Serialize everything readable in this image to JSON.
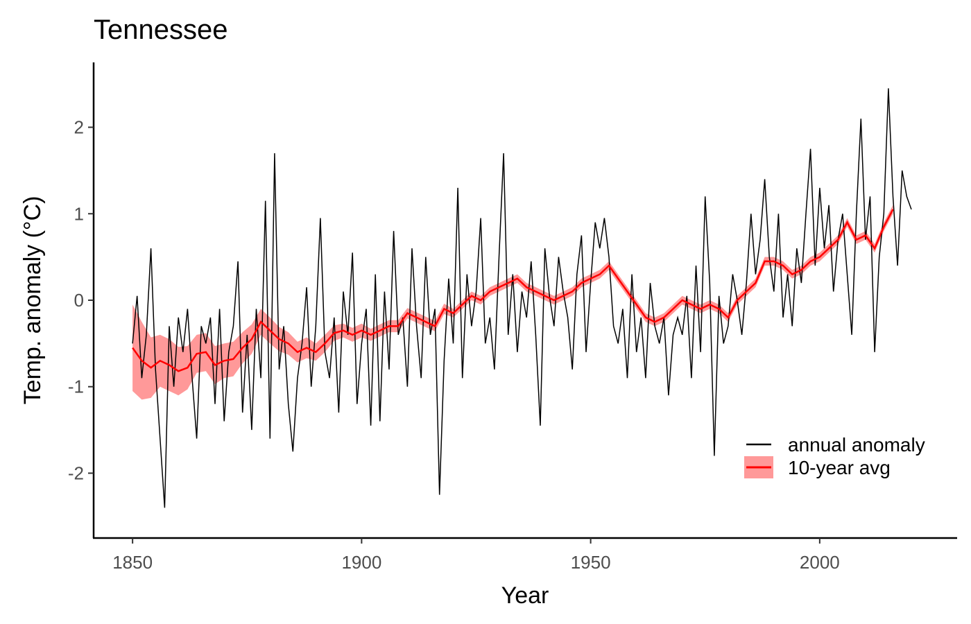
{
  "chart_data": {
    "type": "line",
    "title": "Tennessee",
    "xlabel": "Year",
    "ylabel": "Temp. anomaly (°C)",
    "xlim": [
      1841.5,
      2030
    ],
    "ylim": [
      -2.75,
      2.75
    ],
    "xticks": [
      1850,
      1900,
      1950,
      2000
    ],
    "yticks": [
      -2,
      -1,
      0,
      1,
      2
    ],
    "grid": false,
    "legend_position": "bottom-right",
    "series": [
      {
        "name": "annual anomaly",
        "color": "#000000",
        "x": [
          1850,
          1851,
          1852,
          1853,
          1854,
          1855,
          1856,
          1857,
          1858,
          1859,
          1860,
          1861,
          1862,
          1863,
          1864,
          1865,
          1866,
          1867,
          1868,
          1869,
          1870,
          1871,
          1872,
          1873,
          1874,
          1875,
          1876,
          1877,
          1878,
          1879,
          1880,
          1881,
          1882,
          1883,
          1884,
          1885,
          1886,
          1887,
          1888,
          1889,
          1890,
          1891,
          1892,
          1893,
          1894,
          1895,
          1896,
          1897,
          1898,
          1899,
          1900,
          1901,
          1902,
          1903,
          1904,
          1905,
          1906,
          1907,
          1908,
          1909,
          1910,
          1911,
          1912,
          1913,
          1914,
          1915,
          1916,
          1917,
          1918,
          1919,
          1920,
          1921,
          1922,
          1923,
          1924,
          1925,
          1926,
          1927,
          1928,
          1929,
          1930,
          1931,
          1932,
          1933,
          1934,
          1935,
          1936,
          1937,
          1938,
          1939,
          1940,
          1941,
          1942,
          1943,
          1944,
          1945,
          1946,
          1947,
          1948,
          1949,
          1950,
          1951,
          1952,
          1953,
          1954,
          1955,
          1956,
          1957,
          1958,
          1959,
          1960,
          1961,
          1962,
          1963,
          1964,
          1965,
          1966,
          1967,
          1968,
          1969,
          1970,
          1971,
          1972,
          1973,
          1974,
          1975,
          1976,
          1977,
          1978,
          1979,
          1980,
          1981,
          1982,
          1983,
          1984,
          1985,
          1986,
          1987,
          1988,
          1989,
          1990,
          1991,
          1992,
          1993,
          1994,
          1995,
          1996,
          1997,
          1998,
          1999,
          2000,
          2001,
          2002,
          2003,
          2004,
          2005,
          2006,
          2007,
          2008,
          2009,
          2010,
          2011,
          2012,
          2013,
          2014,
          2015,
          2016,
          2017,
          2018,
          2019,
          2020
        ],
        "values": [
          -0.5,
          0.05,
          -0.9,
          -0.4,
          0.6,
          -0.8,
          -1.6,
          -2.4,
          -0.3,
          -1.0,
          -0.2,
          -0.6,
          -0.1,
          -0.9,
          -1.6,
          -0.3,
          -0.5,
          -0.2,
          -1.2,
          -0.1,
          -1.4,
          -0.6,
          -0.3,
          0.45,
          -1.3,
          -0.4,
          -1.5,
          -0.1,
          -0.9,
          1.15,
          -1.6,
          1.7,
          -0.8,
          -0.3,
          -1.2,
          -1.75,
          -0.9,
          -0.5,
          0.15,
          -1.0,
          -0.3,
          0.95,
          -0.6,
          -0.9,
          -0.2,
          -1.3,
          0.1,
          -0.4,
          0.55,
          -1.2,
          -0.5,
          -0.1,
          -1.45,
          0.3,
          -1.4,
          0.1,
          -0.8,
          0.8,
          -0.4,
          -0.2,
          -1.0,
          0.6,
          -0.3,
          -0.9,
          0.5,
          -0.4,
          -0.1,
          -2.25,
          -0.7,
          0.25,
          -0.5,
          1.3,
          -0.9,
          0.3,
          -0.3,
          0.1,
          0.95,
          -0.5,
          -0.2,
          -0.8,
          0.5,
          1.7,
          -0.4,
          0.3,
          -0.6,
          0.1,
          -0.2,
          0.45,
          -0.4,
          -1.45,
          0.6,
          0.05,
          -0.3,
          0.5,
          0.1,
          -0.2,
          -0.8,
          0.3,
          0.75,
          -0.6,
          0.2,
          0.9,
          0.6,
          0.95,
          0.5,
          -0.3,
          -0.5,
          -0.1,
          -0.9,
          0.3,
          -0.6,
          -0.2,
          -0.9,
          0.2,
          -0.3,
          -0.5,
          -0.2,
          -1.1,
          -0.4,
          -0.2,
          -0.4,
          0.05,
          -0.9,
          0.4,
          -0.6,
          1.2,
          0.2,
          -1.8,
          0.05,
          -0.5,
          -0.3,
          0.3,
          0.0,
          -0.4,
          0.2,
          1.0,
          0.3,
          0.7,
          1.4,
          0.5,
          0.1,
          1.0,
          -0.2,
          0.3,
          -0.3,
          0.6,
          0.2,
          1.0,
          1.75,
          0.4,
          1.3,
          0.6,
          1.1,
          0.1,
          0.7,
          1.0,
          0.3,
          -0.4,
          1.0,
          2.1,
          0.7,
          1.2,
          -0.6,
          0.5,
          1.0,
          2.45,
          1.2,
          0.4,
          1.5,
          1.2,
          1.05
        ]
      },
      {
        "name": "10-year avg",
        "color": "#ff0000",
        "band_color": "#ff8080",
        "x": [
          1850,
          1852,
          1854,
          1856,
          1858,
          1860,
          1862,
          1864,
          1866,
          1868,
          1870,
          1872,
          1874,
          1876,
          1878,
          1880,
          1882,
          1884,
          1886,
          1888,
          1890,
          1892,
          1894,
          1896,
          1898,
          1900,
          1902,
          1904,
          1906,
          1908,
          1910,
          1912,
          1914,
          1916,
          1918,
          1920,
          1922,
          1924,
          1926,
          1928,
          1930,
          1932,
          1934,
          1936,
          1938,
          1940,
          1942,
          1944,
          1946,
          1948,
          1950,
          1952,
          1954,
          1956,
          1958,
          1960,
          1962,
          1964,
          1966,
          1968,
          1970,
          1972,
          1974,
          1976,
          1978,
          1980,
          1982,
          1984,
          1986,
          1988,
          1990,
          1992,
          1994,
          1996,
          1998,
          2000,
          2002,
          2004,
          2006,
          2008,
          2010,
          2012,
          2014,
          2016
        ],
        "values": [
          -0.55,
          -0.7,
          -0.78,
          -0.7,
          -0.75,
          -0.82,
          -0.78,
          -0.62,
          -0.6,
          -0.75,
          -0.7,
          -0.68,
          -0.55,
          -0.45,
          -0.25,
          -0.35,
          -0.45,
          -0.5,
          -0.6,
          -0.55,
          -0.6,
          -0.5,
          -0.38,
          -0.35,
          -0.4,
          -0.35,
          -0.4,
          -0.35,
          -0.3,
          -0.3,
          -0.15,
          -0.2,
          -0.25,
          -0.3,
          -0.1,
          -0.15,
          -0.05,
          0.05,
          0.0,
          0.1,
          0.15,
          0.2,
          0.25,
          0.15,
          0.1,
          0.05,
          0.0,
          0.05,
          0.1,
          0.2,
          0.25,
          0.3,
          0.4,
          0.25,
          0.1,
          -0.05,
          -0.2,
          -0.25,
          -0.2,
          -0.1,
          0.0,
          -0.05,
          -0.1,
          -0.05,
          -0.1,
          -0.2,
          0.0,
          0.1,
          0.2,
          0.45,
          0.45,
          0.4,
          0.3,
          0.35,
          0.45,
          0.5,
          0.6,
          0.7,
          0.9,
          0.7,
          0.75,
          0.6,
          0.85,
          1.05
        ],
        "band_half_width": [
          0.5,
          0.45,
          0.35,
          0.3,
          0.3,
          0.28,
          0.25,
          0.22,
          0.22,
          0.22,
          0.2,
          0.2,
          0.18,
          0.17,
          0.15,
          0.15,
          0.14,
          0.13,
          0.12,
          0.12,
          0.1,
          0.1,
          0.09,
          0.08,
          0.08,
          0.08,
          0.07,
          0.07,
          0.07,
          0.07,
          0.06,
          0.06,
          0.06,
          0.06,
          0.06,
          0.05,
          0.05,
          0.05,
          0.05,
          0.05,
          0.05,
          0.05,
          0.05,
          0.05,
          0.05,
          0.05,
          0.05,
          0.05,
          0.05,
          0.05,
          0.05,
          0.05,
          0.05,
          0.05,
          0.05,
          0.05,
          0.05,
          0.05,
          0.05,
          0.05,
          0.05,
          0.05,
          0.05,
          0.05,
          0.05,
          0.05,
          0.05,
          0.05,
          0.05,
          0.05,
          0.05,
          0.05,
          0.05,
          0.05,
          0.05,
          0.05,
          0.05,
          0.05,
          0.05,
          0.05,
          0.05,
          0.05,
          0.05,
          0.05
        ]
      }
    ]
  }
}
